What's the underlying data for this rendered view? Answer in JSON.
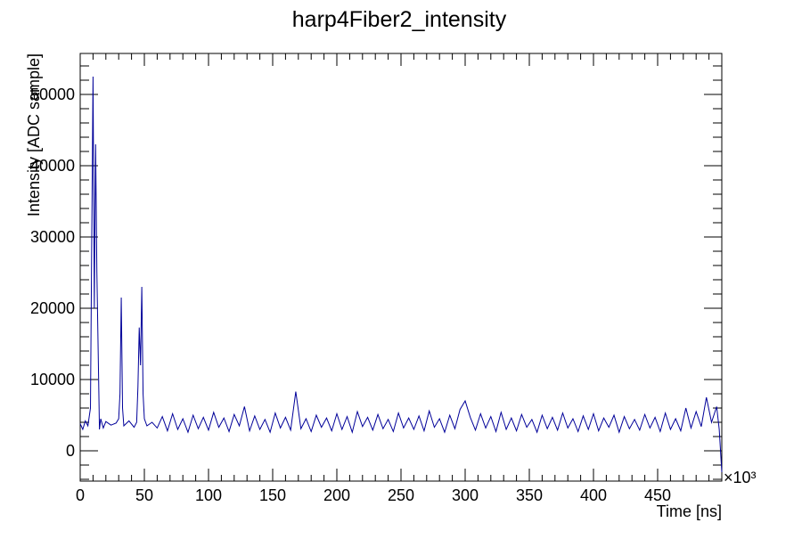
{
  "chart_data": {
    "type": "line",
    "title": "harp4Fiber2_intensity",
    "x_label": "Time [ns]",
    "y_label": "Intensity [ADC sample]",
    "x_exponent_label": "×10³",
    "xlim": [
      0,
      500
    ],
    "ylim": [
      -4250,
      55750
    ],
    "xticks": [
      0,
      50,
      100,
      150,
      200,
      250,
      300,
      350,
      400,
      450
    ],
    "yticks": [
      0,
      10000,
      20000,
      30000,
      40000,
      50000
    ],
    "series": [
      {
        "color": "#000099",
        "x": [
          0,
          2,
          4,
          6,
          8,
          9,
          10,
          11,
          12,
          13,
          14,
          15,
          16,
          18,
          20,
          24,
          28,
          30,
          31,
          32,
          33,
          34,
          38,
          42,
          44,
          45,
          46,
          47,
          48,
          49,
          50,
          52,
          56,
          60,
          64,
          68,
          72,
          76,
          80,
          84,
          88,
          92,
          96,
          100,
          104,
          108,
          112,
          116,
          120,
          124,
          128,
          132,
          136,
          140,
          144,
          148,
          152,
          156,
          160,
          164,
          168,
          172,
          176,
          180,
          184,
          188,
          192,
          196,
          200,
          204,
          208,
          212,
          216,
          220,
          224,
          228,
          232,
          236,
          240,
          244,
          248,
          252,
          256,
          260,
          264,
          268,
          272,
          276,
          280,
          284,
          288,
          292,
          296,
          300,
          304,
          308,
          312,
          316,
          320,
          324,
          328,
          332,
          336,
          340,
          344,
          348,
          352,
          356,
          360,
          364,
          368,
          372,
          376,
          380,
          384,
          388,
          392,
          396,
          400,
          404,
          408,
          412,
          416,
          420,
          424,
          428,
          432,
          436,
          440,
          444,
          448,
          452,
          456,
          460,
          464,
          468,
          472,
          476,
          480,
          484,
          488,
          492,
          496,
          498,
          500
        ],
        "values": [
          3800,
          3000,
          4200,
          3500,
          6000,
          30000,
          52500,
          20000,
          43000,
          25000,
          14000,
          3000,
          4500,
          3200,
          4100,
          3600,
          3900,
          4500,
          8000,
          21500,
          6000,
          3500,
          4200,
          3300,
          4000,
          9000,
          17300,
          12000,
          23000,
          8000,
          4500,
          3500,
          4000,
          3200,
          4800,
          2800,
          5200,
          3000,
          4500,
          2600,
          5000,
          3100,
          4700,
          2900,
          5400,
          3300,
          4600,
          2700,
          5100,
          3500,
          6200,
          2800,
          4900,
          3000,
          4400,
          2600,
          5300,
          3200,
          4700,
          2900,
          8300,
          3100,
          4500,
          2700,
          5000,
          3300,
          4600,
          2800,
          5200,
          3000,
          4800,
          2600,
          5500,
          3400,
          4700,
          2900,
          5100,
          3100,
          4400,
          2700,
          5300,
          3200,
          4600,
          3000,
          4900,
          2800,
          5600,
          3300,
          4500,
          2600,
          5000,
          3100,
          5800,
          7000,
          4700,
          2900,
          5200,
          3200,
          4800,
          2700,
          5400,
          3000,
          4600,
          2800,
          5100,
          3300,
          4400,
          2600,
          5000,
          3100,
          4700,
          2900,
          5300,
          3200,
          4500,
          2700,
          4900,
          3000,
          5200,
          2800,
          4600,
          3300,
          5000,
          2600,
          4800,
          3100,
          4400,
          2900,
          5100,
          3200,
          4700,
          2700,
          5300,
          3000,
          4500,
          2800,
          6000,
          3200,
          5500,
          3400,
          7500,
          4000,
          6200,
          3000,
          -3000
        ]
      }
    ]
  }
}
